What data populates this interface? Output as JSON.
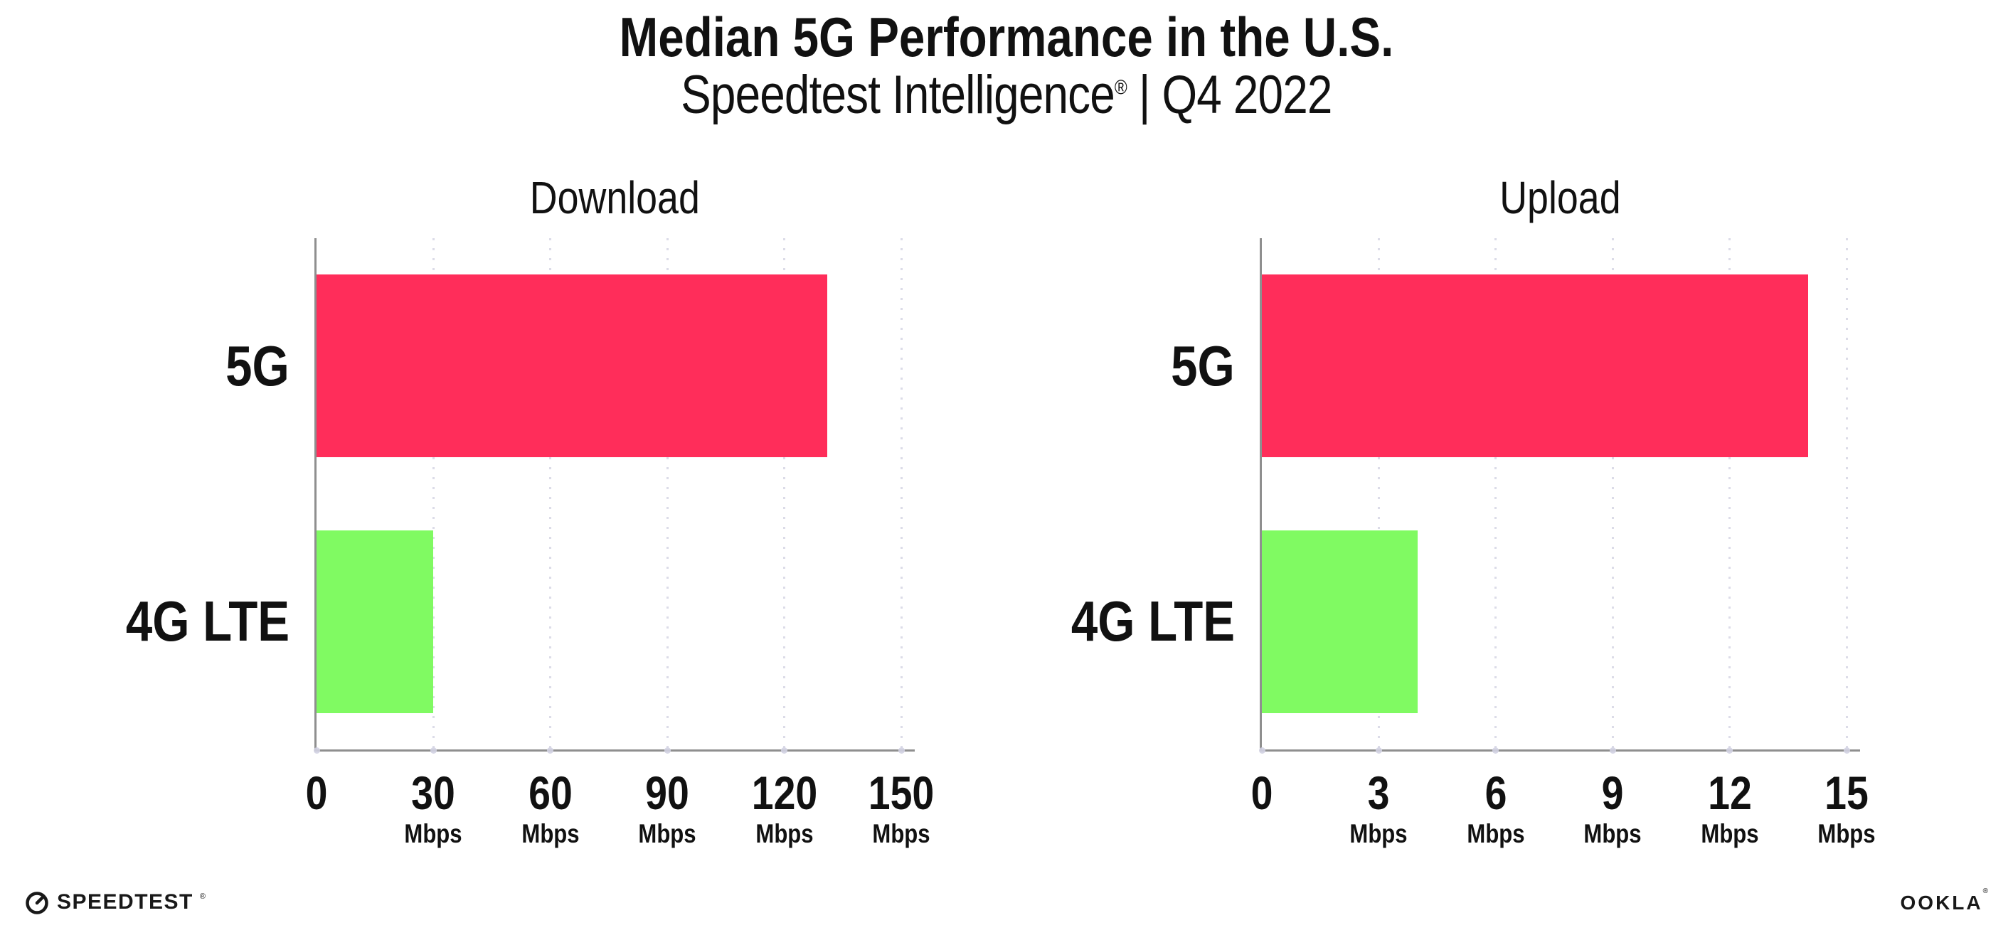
{
  "title": "Median 5G Performance in the U.S.",
  "subtitle": {
    "brand": "Speedtest Intelligence",
    "reg_mark": "®",
    "separator": " | ",
    "period": "Q4 2022"
  },
  "colors": {
    "bar_5g": "#ff2d5a",
    "bar_4g_lte": "#80fa62",
    "gridline": "#dcdce8",
    "axis": "#8f8f8f",
    "text": "#111111"
  },
  "chart_data": [
    {
      "type": "bar",
      "orientation": "horizontal",
      "title": "Download",
      "categories": [
        "5G",
        "4G LTE"
      ],
      "values": [
        131,
        30
      ],
      "unit": "Mbps",
      "xlim": [
        0,
        150
      ],
      "ticks": [
        0,
        30,
        60,
        90,
        120,
        150
      ],
      "grid": "dotted-vertical",
      "legend": "none"
    },
    {
      "type": "bar",
      "orientation": "horizontal",
      "title": "Upload",
      "categories": [
        "5G",
        "4G LTE"
      ],
      "values": [
        14,
        4
      ],
      "unit": "Mbps",
      "xlim": [
        0,
        15
      ],
      "ticks": [
        0,
        3,
        6,
        9,
        12,
        15
      ],
      "grid": "dotted-vertical",
      "legend": "none"
    }
  ],
  "footer": {
    "speedtest_label": "SPEEDTEST",
    "speedtest_reg": "®",
    "ookla_label": "OOKLA",
    "ookla_reg": "®"
  }
}
